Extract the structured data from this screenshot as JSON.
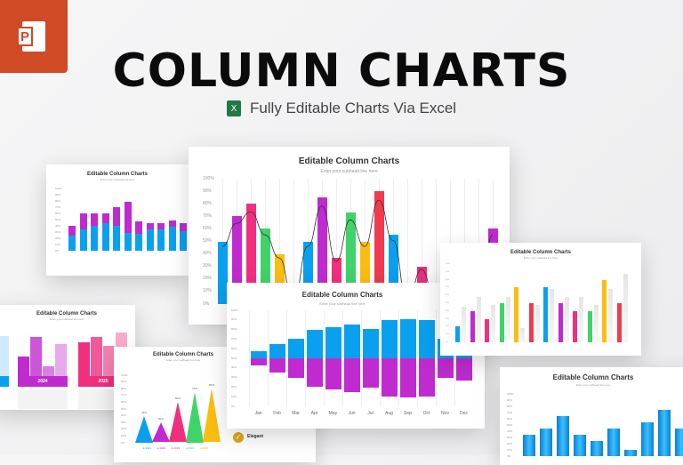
{
  "header": {
    "title": "COLUMN CHARTS",
    "subtitle": "Fully Editable Charts Via Excel",
    "ppt_icon": "powerpoint-icon",
    "excel_icon": "excel-icon",
    "ppt_letter": "P",
    "excel_letter": "X"
  },
  "slide_title": "Editable Column Charts",
  "slide_subtitle": "Enter your subhead line here",
  "colors": {
    "blue": "#0aa0f0",
    "purple": "#c02bd0",
    "pink": "#f0307f",
    "green": "#3fd36a",
    "yellow": "#fbbd11",
    "red": "#f03a4f",
    "gray": "#e6e6e6"
  },
  "y_ticks": [
    "100%",
    "90%",
    "80%",
    "70%",
    "60%",
    "50%",
    "40%",
    "30%",
    "20%",
    "10%",
    "0%"
  ],
  "stacked_slide": {
    "blue": [
      25,
      35,
      40,
      45,
      40,
      28,
      27,
      35,
      35,
      38,
      32
    ],
    "purple": [
      15,
      25,
      20,
      15,
      30,
      50,
      20,
      10,
      10,
      10,
      12
    ]
  },
  "main_slide": {
    "values": [
      50,
      70,
      80,
      60,
      40,
      2,
      50,
      85,
      37,
      73,
      50,
      90,
      55,
      2,
      30,
      2,
      0,
      0,
      0,
      60
    ],
    "colors": [
      "blue",
      "purple",
      "pink",
      "green",
      "yellow",
      "red",
      "blue",
      "purple",
      "pink",
      "green",
      "yellow",
      "red",
      "blue",
      "purple",
      "pink",
      "green",
      "yellow",
      "red",
      "blue",
      "purple"
    ]
  },
  "posneg_slide": {
    "months": [
      "Jan",
      "Feb",
      "Mar",
      "Apr",
      "May",
      "Jun",
      "Jul",
      "Aug",
      "Sep",
      "Oct",
      "Nov",
      "Dec"
    ],
    "positive": [
      15,
      30,
      40,
      60,
      65,
      70,
      62,
      80,
      82,
      79,
      40,
      40
    ],
    "negative": [
      15,
      30,
      40,
      60,
      65,
      70,
      62,
      80,
      82,
      79,
      40,
      46
    ]
  },
  "paired_slide": {
    "values": [
      20,
      40,
      30,
      50,
      70,
      50,
      70,
      50,
      40,
      40,
      80,
      50
    ],
    "comparison": [
      45,
      58,
      48,
      58,
      18,
      48,
      68,
      58,
      58,
      48,
      68,
      88
    ],
    "colors": [
      "blue",
      "purple",
      "pink",
      "green",
      "yellow",
      "red",
      "blue",
      "purple",
      "pink",
      "green",
      "yellow",
      "red"
    ]
  },
  "group_slide": {
    "years": [
      "2024",
      "2025"
    ],
    "group1": [
      40,
      80,
      20,
      65
    ],
    "group2": [
      70,
      80,
      62,
      90
    ]
  },
  "pyramid_slide": {
    "values": [
      40,
      30,
      60,
      75,
      80
    ],
    "labels": [
      "40%",
      "30%",
      "60%",
      "75%",
      "80%"
    ],
    "legend": [
      "2021",
      "2022",
      "2023",
      "2024",
      "2025"
    ],
    "colors": [
      "blue",
      "purple",
      "pink",
      "green",
      "yellow"
    ],
    "feature": "Elegant"
  },
  "gradient_slide": {
    "values": [
      35,
      45,
      65,
      35,
      25,
      45,
      10,
      55,
      75,
      45
    ]
  }
}
